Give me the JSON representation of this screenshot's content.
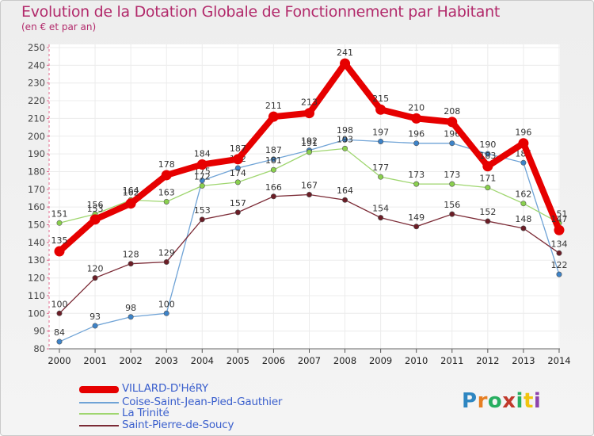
{
  "header": {
    "title": "Evolution de la Dotation Globale de Fonctionnement par Habitant",
    "subtitle": "(en € et par an)"
  },
  "colors": {
    "title": "#b22a6b",
    "grid": "#e36a8e",
    "axis": "#333333",
    "legend_text": "#3a5fcd"
  },
  "chart_data": {
    "type": "line",
    "title": "Evolution de la Dotation Globale de Fonctionnement par Habitant",
    "subtitle": "(en € et par an)",
    "xlabel": "",
    "ylabel": "",
    "ylim": [
      80,
      250
    ],
    "ytick_step": 10,
    "grid": true,
    "categories": [
      "2000",
      "2001",
      "2002",
      "2003",
      "2004",
      "2005",
      "2006",
      "2007",
      "2008",
      "2009",
      "2010",
      "2011",
      "2012",
      "2013",
      "2014"
    ],
    "series": [
      {
        "name": "VILLARD-D'HéRY",
        "color": "#e60000",
        "marker_color": "#e60000",
        "highlight": true,
        "values": [
          135,
          153,
          162,
          178,
          184,
          187,
          211,
          213,
          241,
          215,
          210,
          208,
          183,
          196,
          147
        ],
        "labels": [
          "135",
          "153",
          "162",
          "178",
          "184",
          "187",
          "211",
          "213",
          "241",
          "215",
          "210",
          "208",
          "183",
          "196",
          "147"
        ]
      },
      {
        "name": "Coise-Saint-Jean-Pied-Gauthier",
        "color": "#6fa3d6",
        "marker_color": "#3d83c8",
        "values": [
          84,
          93,
          98,
          100,
          175,
          182,
          187,
          192,
          198,
          197,
          196,
          196,
          190,
          185,
          122
        ],
        "labels": [
          "84",
          "93",
          "98",
          "100",
          "175",
          "182",
          "187",
          "192",
          "198",
          "197",
          "196",
          "196",
          "190",
          "185",
          "122"
        ]
      },
      {
        "name": "La Trinité",
        "color": "#9fd66f",
        "marker_color": "#8ad04e",
        "values": [
          151,
          156,
          164,
          163,
          172,
          174,
          181,
          191,
          193,
          177,
          173,
          173,
          171,
          162,
          151
        ],
        "labels": [
          "151",
          "156",
          "164",
          "163",
          "172",
          "174",
          "181",
          "191",
          "193",
          "177",
          "173",
          "173",
          "171",
          "162",
          "151"
        ]
      },
      {
        "name": "Saint-Pierre-de-Soucy",
        "color": "#7b2a35",
        "marker_color": "#6b1d26",
        "values": [
          100,
          120,
          128,
          129,
          153,
          157,
          166,
          167,
          164,
          154,
          149,
          156,
          152,
          148,
          134
        ],
        "labels": [
          "100",
          "120",
          "128",
          "129",
          "153",
          "157",
          "166",
          "167",
          "164",
          "154",
          "149",
          "156",
          "152",
          "148",
          "134"
        ]
      }
    ]
  },
  "legend": {
    "items": [
      {
        "label": "VILLARD-D'HéRY",
        "color": "#e60000",
        "thickness": 9
      },
      {
        "label": "Coise-Saint-Jean-Pied-Gauthier",
        "color": "#6fa3d6",
        "thickness": 2
      },
      {
        "label": "La Trinité",
        "color": "#9fd66f",
        "thickness": 2
      },
      {
        "label": "Saint-Pierre-de-Soucy",
        "color": "#7b2a35",
        "thickness": 2
      }
    ]
  },
  "logo": {
    "letters": [
      "P",
      "r",
      "o",
      "x",
      "i",
      "t",
      "i"
    ],
    "colors": [
      "#2e86c1",
      "#e67e22",
      "#27ae60",
      "#c0392b",
      "#27ae60",
      "#f1c40f",
      "#8e44ad"
    ]
  }
}
